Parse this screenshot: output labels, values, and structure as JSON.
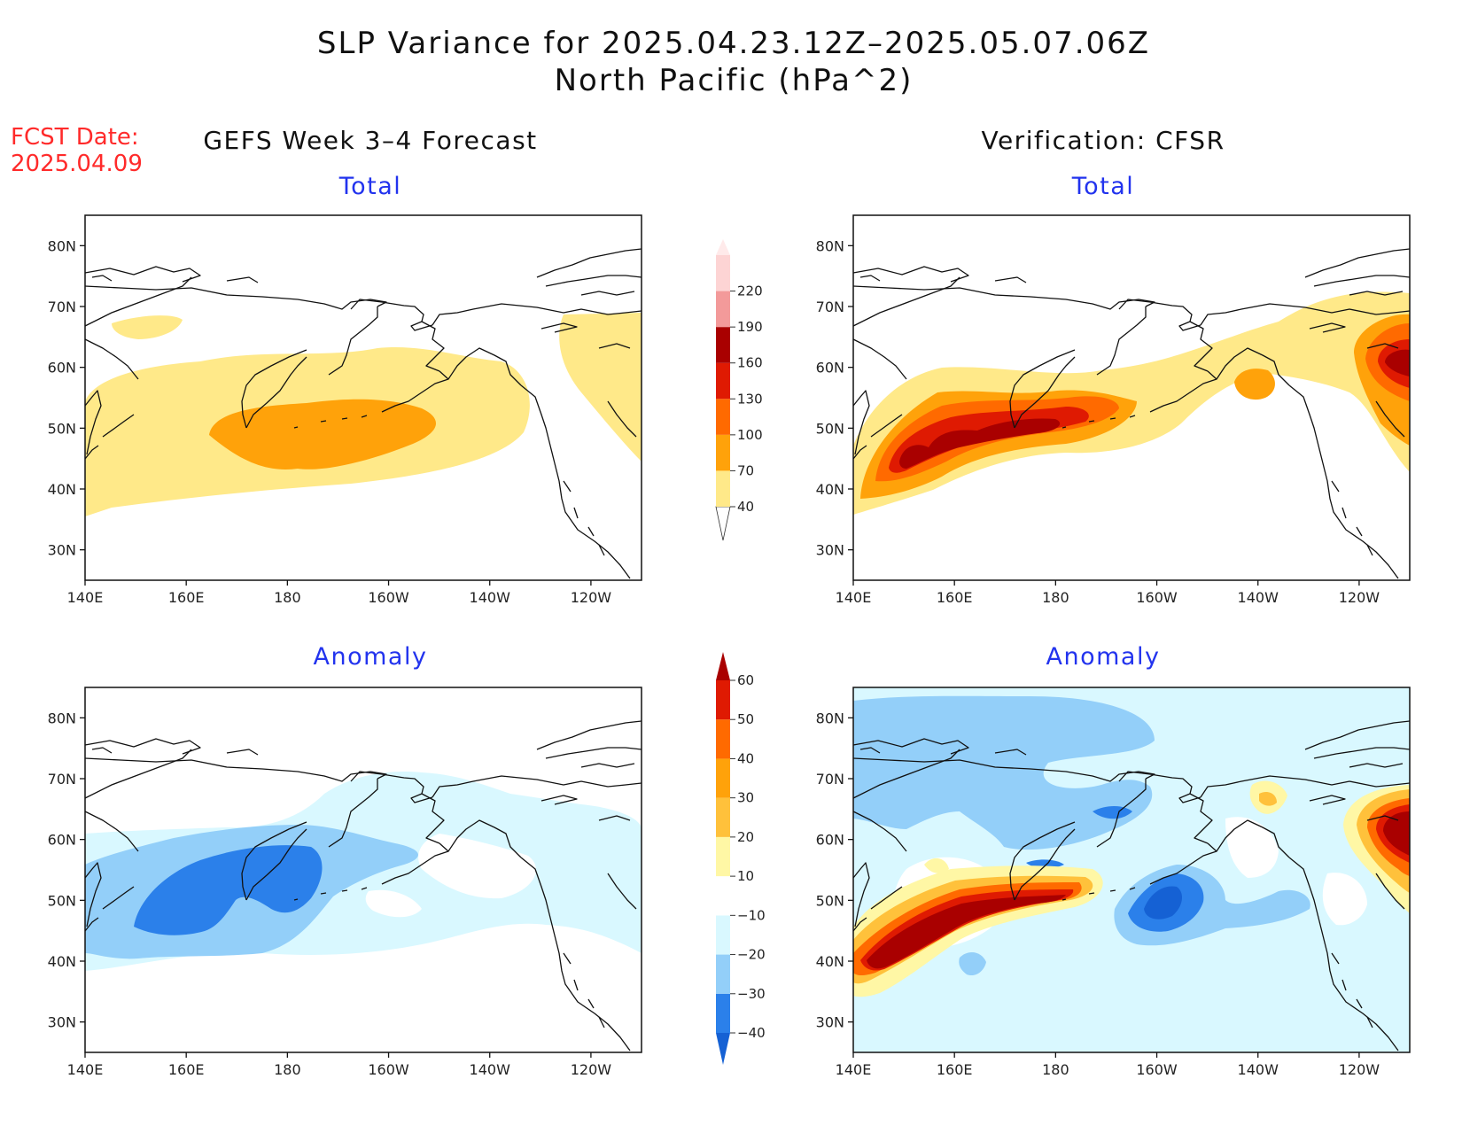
{
  "header": {
    "title": "SLP Variance for 2025.04.23.12Z–2025.05.07.06Z",
    "subtitle": "North Pacific (hPa^2)",
    "fcst_label": "FCST Date:",
    "fcst_date": "2025.04.09",
    "left_column": "GEFS Week 3–4 Forecast",
    "right_column": "Verification: CFSR"
  },
  "panels": {
    "fc_total": {
      "title": "Total"
    },
    "ver_total": {
      "title": "Total"
    },
    "fc_anom": {
      "title": "Anomaly"
    },
    "ver_anom": {
      "title": "Anomaly"
    }
  },
  "axes": {
    "x_ticks": [
      "140E",
      "160E",
      "180",
      "160W",
      "140W",
      "120W"
    ],
    "y_ticks": [
      "80N",
      "70N",
      "60N",
      "50N",
      "40N",
      "30N"
    ],
    "lon_range": [
      140,
      250
    ],
    "lat_range": [
      25,
      85
    ]
  },
  "colorbars": {
    "total": {
      "labels": [
        "40",
        "70",
        "100",
        "130",
        "160",
        "190",
        "220"
      ],
      "colors": [
        "#ffffff",
        "#ffe989",
        "#ffa20a",
        "#ff6a00",
        "#df1a02",
        "#a90000",
        "#f39a9a",
        "#fdd4d4",
        "#ffeaea"
      ]
    },
    "anomaly": {
      "labels": [
        "−40",
        "−30",
        "−20",
        "−10",
        "10",
        "20",
        "30",
        "40",
        "50",
        "60"
      ],
      "colors": [
        "#1561d4",
        "#2b80ea",
        "#93cff9",
        "#d9f8ff",
        "#ffffff",
        "#fff7a5",
        "#ffc13b",
        "#ffa20a",
        "#ff6a00",
        "#df1a02",
        "#a90000"
      ]
    }
  }
}
